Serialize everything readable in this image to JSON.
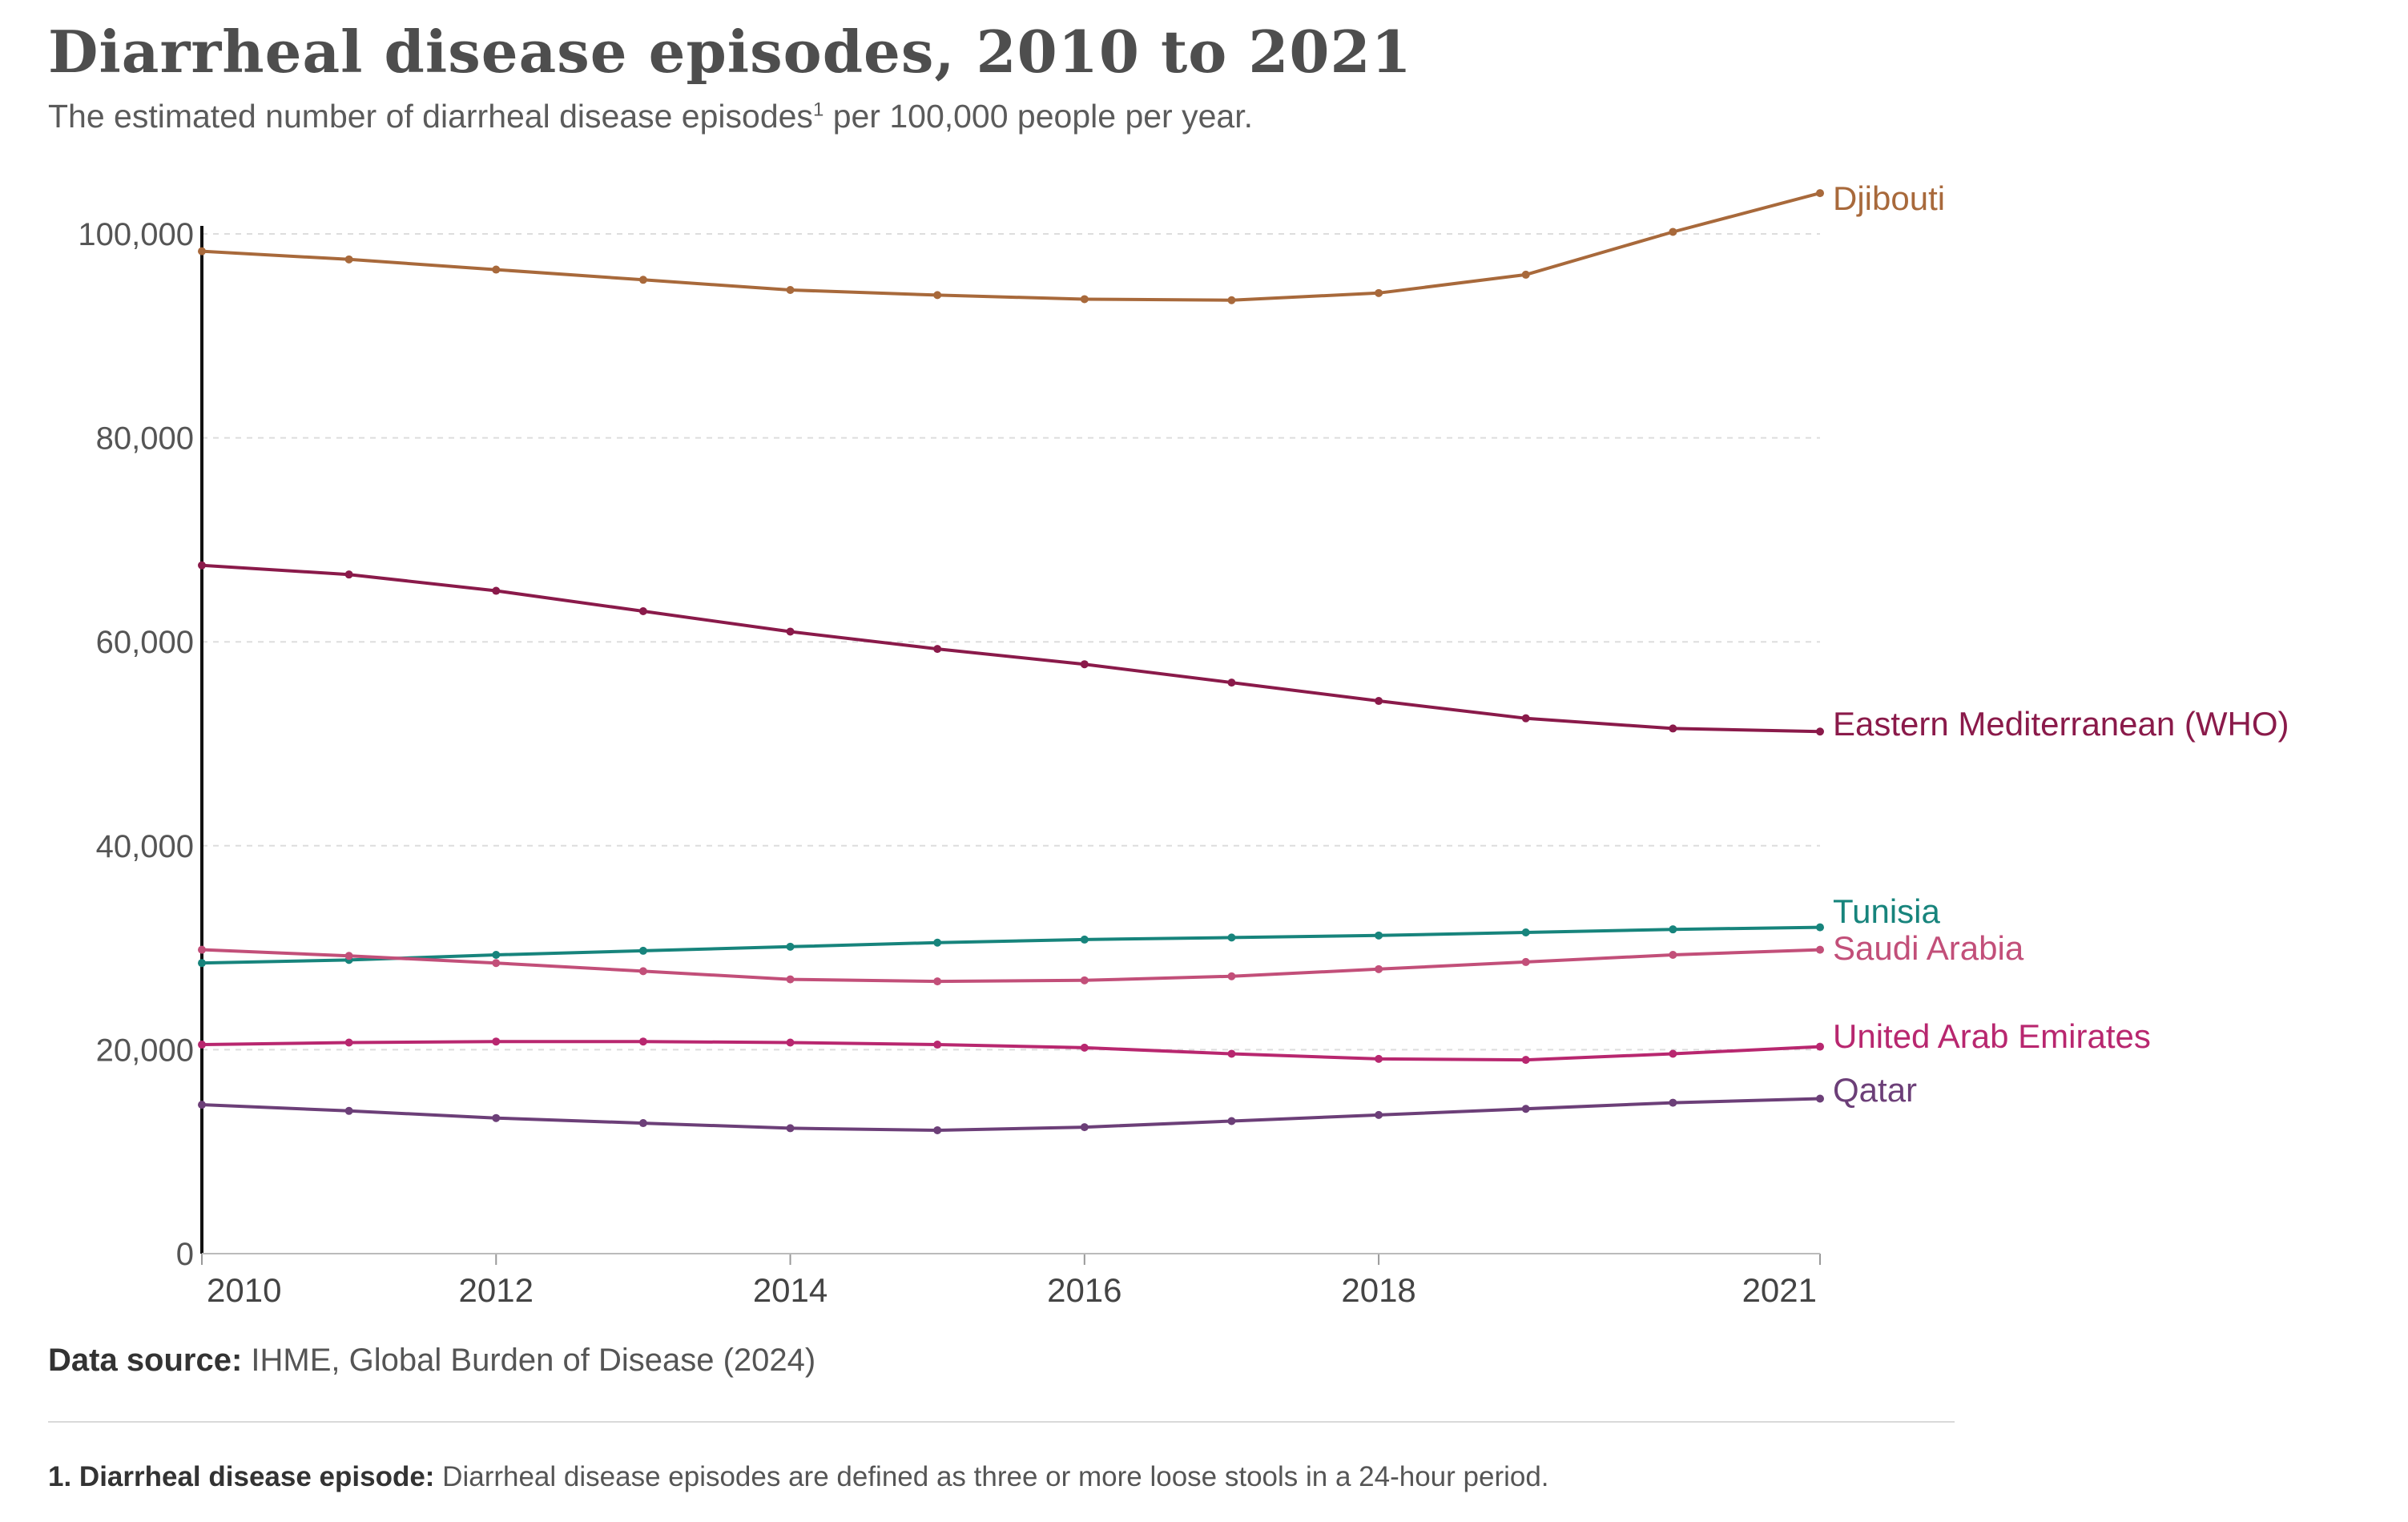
{
  "header": {
    "title": "Diarrheal disease episodes, 2010 to 2021",
    "subtitle": "The estimated number of diarrheal disease episodes",
    "subtitle_sup": "1",
    "subtitle_tail": " per 100,000 people per year."
  },
  "footer": {
    "source_label": "Data source:",
    "source_text": " IHME, Global Burden of Disease (2024)",
    "note_label": "1. Diarrheal disease episode:",
    "note_text": " Diarrheal disease episodes are defined as three or more loose stools in a 24-hour period."
  },
  "chart_data": {
    "type": "line",
    "title": "Diarrheal disease episodes, 2010 to 2021",
    "subtitle": "The estimated number of diarrheal disease episodes per 100,000 people per year.",
    "xlabel": "",
    "ylabel": "",
    "x": [
      2010,
      2011,
      2012,
      2013,
      2014,
      2015,
      2016,
      2017,
      2018,
      2019,
      2020,
      2021
    ],
    "xlim": [
      2010,
      2021
    ],
    "ylim": [
      0,
      100000
    ],
    "x_ticks": [
      2010,
      2012,
      2014,
      2016,
      2018,
      2021
    ],
    "x_tick_labels": [
      "2010",
      "2012",
      "2014",
      "2016",
      "2018",
      "2021"
    ],
    "y_ticks": [
      0,
      20000,
      40000,
      60000,
      80000,
      100000
    ],
    "y_tick_labels": [
      "0",
      "20,000",
      "40,000",
      "60,000",
      "80,000",
      "100,000"
    ],
    "grid": true,
    "legend": "inline labels at line ends (right)",
    "series": [
      {
        "name": "Djibouti",
        "color": "#a8693b",
        "values": [
          98300,
          97500,
          96500,
          95500,
          94500,
          94000,
          93600,
          93500,
          94200,
          96000,
          100200,
          104000
        ]
      },
      {
        "name": "Eastern Mediterranean (WHO)",
        "color": "#8a1a4a",
        "values": [
          67500,
          66600,
          65000,
          63000,
          61000,
          59300,
          57800,
          56000,
          54200,
          52500,
          51500,
          51200
        ]
      },
      {
        "name": "Tunisia",
        "color": "#17847c",
        "values": [
          28500,
          28800,
          29300,
          29700,
          30100,
          30500,
          30800,
          31000,
          31200,
          31500,
          31800,
          32000
        ]
      },
      {
        "name": "Saudi Arabia",
        "color": "#c24f79",
        "values": [
          29800,
          29200,
          28500,
          27700,
          26900,
          26700,
          26800,
          27200,
          27900,
          28600,
          29300,
          29800
        ]
      },
      {
        "name": "United Arab Emirates",
        "color": "#b8276f",
        "values": [
          20500,
          20700,
          20800,
          20800,
          20700,
          20500,
          20200,
          19600,
          19100,
          19000,
          19600,
          20300
        ]
      },
      {
        "name": "Qatar",
        "color": "#6c3f78",
        "values": [
          14600,
          14000,
          13300,
          12800,
          12300,
          12100,
          12400,
          13000,
          13600,
          14200,
          14800,
          15200
        ]
      }
    ]
  }
}
